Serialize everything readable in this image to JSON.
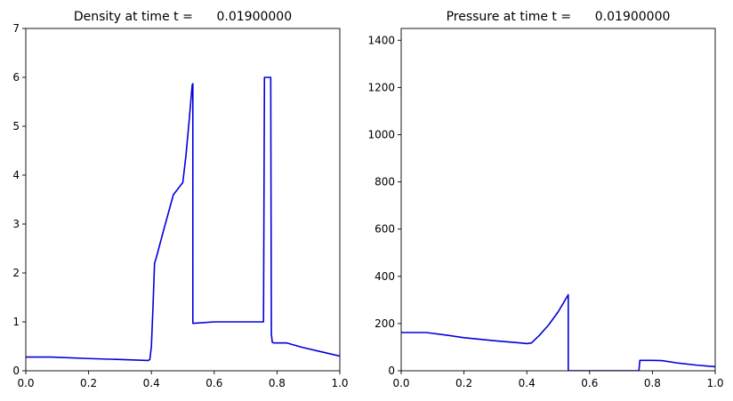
{
  "chart_data": [
    {
      "type": "line",
      "title": "Density at time t =      0.01900000",
      "xlabel": "",
      "ylabel": "",
      "xlim": [
        0.0,
        1.0
      ],
      "ylim": [
        0,
        7
      ],
      "xticks": [
        "0.0",
        "0.2",
        "0.4",
        "0.6",
        "0.8",
        "1.0"
      ],
      "yticks": [
        "0",
        "1",
        "2",
        "3",
        "4",
        "5",
        "6",
        "7"
      ],
      "grid": false,
      "series": [
        {
          "color": "#0000dd",
          "x": [
            0.0,
            0.08,
            0.2,
            0.3,
            0.39,
            0.395,
            0.4,
            0.405,
            0.41,
            0.415,
            0.44,
            0.47,
            0.5,
            0.51,
            0.52,
            0.53,
            0.532,
            0.532,
            0.6,
            0.7,
            0.757,
            0.757,
            0.76,
            0.78,
            0.782,
            0.785,
            0.79,
            0.8,
            0.83,
            0.88,
            0.94,
            1.0
          ],
          "y": [
            0.28,
            0.28,
            0.25,
            0.23,
            0.21,
            0.23,
            0.5,
            1.3,
            2.2,
            2.3,
            2.9,
            3.6,
            3.85,
            4.4,
            5.1,
            5.85,
            5.87,
            0.97,
            1.0,
            1.0,
            1.0,
            1.0,
            6.0,
            6.0,
            0.75,
            0.58,
            0.57,
            0.57,
            0.57,
            0.48,
            0.39,
            0.3
          ]
        }
      ]
    },
    {
      "type": "line",
      "title": "Pressure at time t =      0.01900000",
      "xlabel": "",
      "ylabel": "",
      "xlim": [
        0.0,
        1.0
      ],
      "ylim": [
        0,
        1450
      ],
      "xticks": [
        "0.0",
        "0.2",
        "0.4",
        "0.6",
        "0.8",
        "1.0"
      ],
      "yticks": [
        "0",
        "200",
        "400",
        "600",
        "800",
        "1000",
        "1200",
        "1400"
      ],
      "grid": false,
      "series": [
        {
          "color": "#0000dd",
          "x": [
            0.0,
            0.08,
            0.15,
            0.2,
            0.3,
            0.38,
            0.4,
            0.415,
            0.44,
            0.47,
            0.5,
            0.52,
            0.532,
            0.532,
            0.6,
            0.7,
            0.757,
            0.757,
            0.76,
            0.8,
            0.83,
            0.88,
            0.94,
            1.0
          ],
          "y": [
            162,
            162,
            150,
            140,
            127,
            118,
            115,
            118,
            150,
            195,
            250,
            295,
            322,
            0,
            0,
            0,
            0,
            0,
            44,
            44,
            43,
            33,
            24,
            17
          ]
        }
      ]
    }
  ]
}
